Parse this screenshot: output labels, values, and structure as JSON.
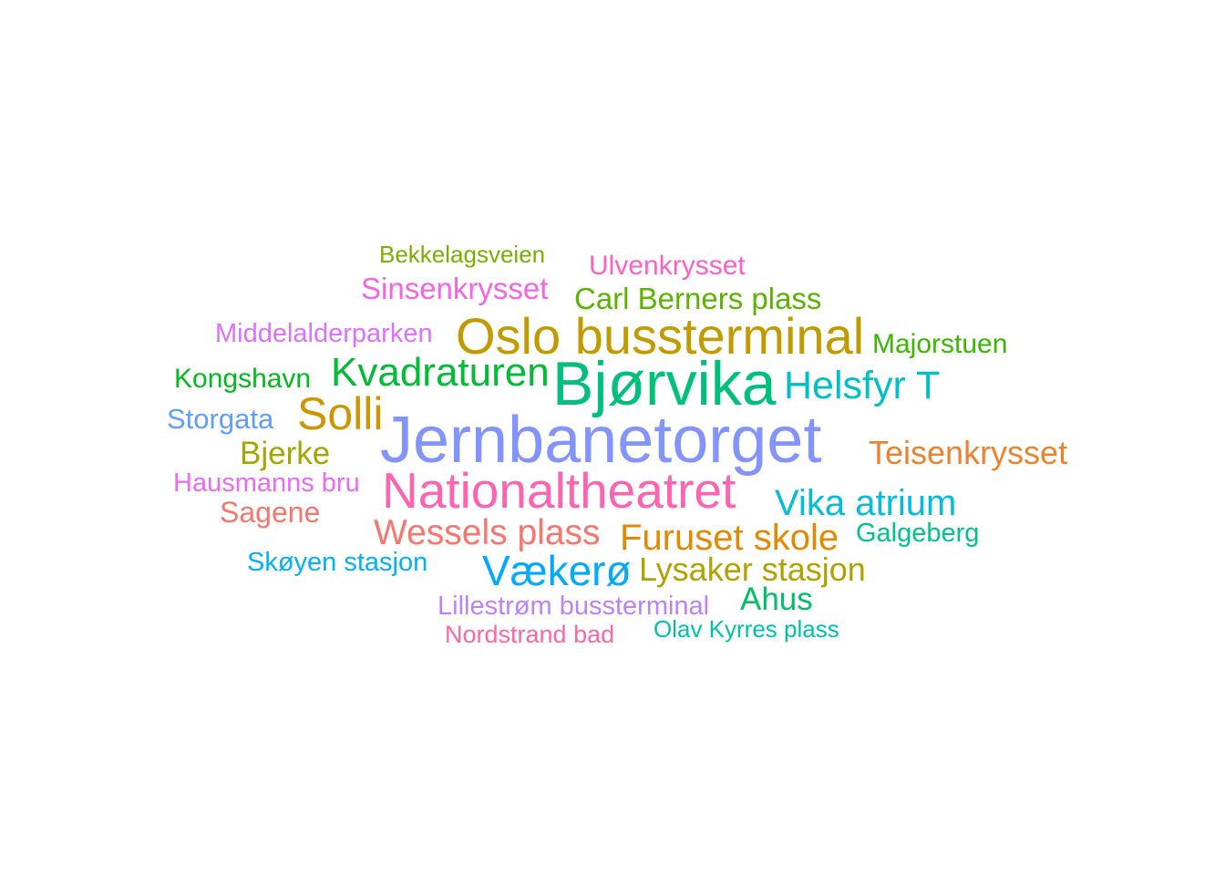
{
  "words": [
    {
      "text": "Bekkelagsveien",
      "color": "#7CAE00"
    },
    {
      "text": "Ulvenkrysset",
      "color": "#FF61C3"
    },
    {
      "text": "Sinsenkrysset",
      "color": "#F564E3"
    },
    {
      "text": "Carl Berners plass",
      "color": "#5BB300"
    },
    {
      "text": "Middelalderparken",
      "color": "#DB72FB"
    },
    {
      "text": "Oslo bussterminal",
      "color": "#C09B00"
    },
    {
      "text": "Majorstuen",
      "color": "#39B600"
    },
    {
      "text": "Kongshavn",
      "color": "#00B81F"
    },
    {
      "text": "Kvadraturen",
      "color": "#00BA38"
    },
    {
      "text": "Bjørvika",
      "color": "#00BF7D"
    },
    {
      "text": "Helsfyr T",
      "color": "#00BFC4"
    },
    {
      "text": "Storgata",
      "color": "#619CFF"
    },
    {
      "text": "Solli",
      "color": "#CD9600"
    },
    {
      "text": "Jernbanetorget",
      "color": "#8494FF"
    },
    {
      "text": "Bjerke",
      "color": "#A3A500"
    },
    {
      "text": "Teisenkrysset",
      "color": "#EA8331"
    },
    {
      "text": "Hausmanns bru",
      "color": "#E76BF3"
    },
    {
      "text": "Nationaltheatret",
      "color": "#FF64B0"
    },
    {
      "text": "Vika atrium",
      "color": "#00BCD8"
    },
    {
      "text": "Sagene",
      "color": "#F8766D"
    },
    {
      "text": "Wessels plass",
      "color": "#F8766D"
    },
    {
      "text": "Furuset skole",
      "color": "#E38900"
    },
    {
      "text": "Galgeberg",
      "color": "#00C08B"
    },
    {
      "text": "Skøyen stasjon",
      "color": "#00B0F6"
    },
    {
      "text": "Vækerø",
      "color": "#00A9FF"
    },
    {
      "text": "Lysaker stasjon",
      "color": "#AEA200"
    },
    {
      "text": "Ahus",
      "color": "#00BE67"
    },
    {
      "text": "Lillestrøm bussterminal",
      "color": "#B983FF"
    },
    {
      "text": "Olav Kyrres plass",
      "color": "#00C1A3"
    },
    {
      "text": "Nordstrand bad",
      "color": "#FF67A4"
    }
  ]
}
